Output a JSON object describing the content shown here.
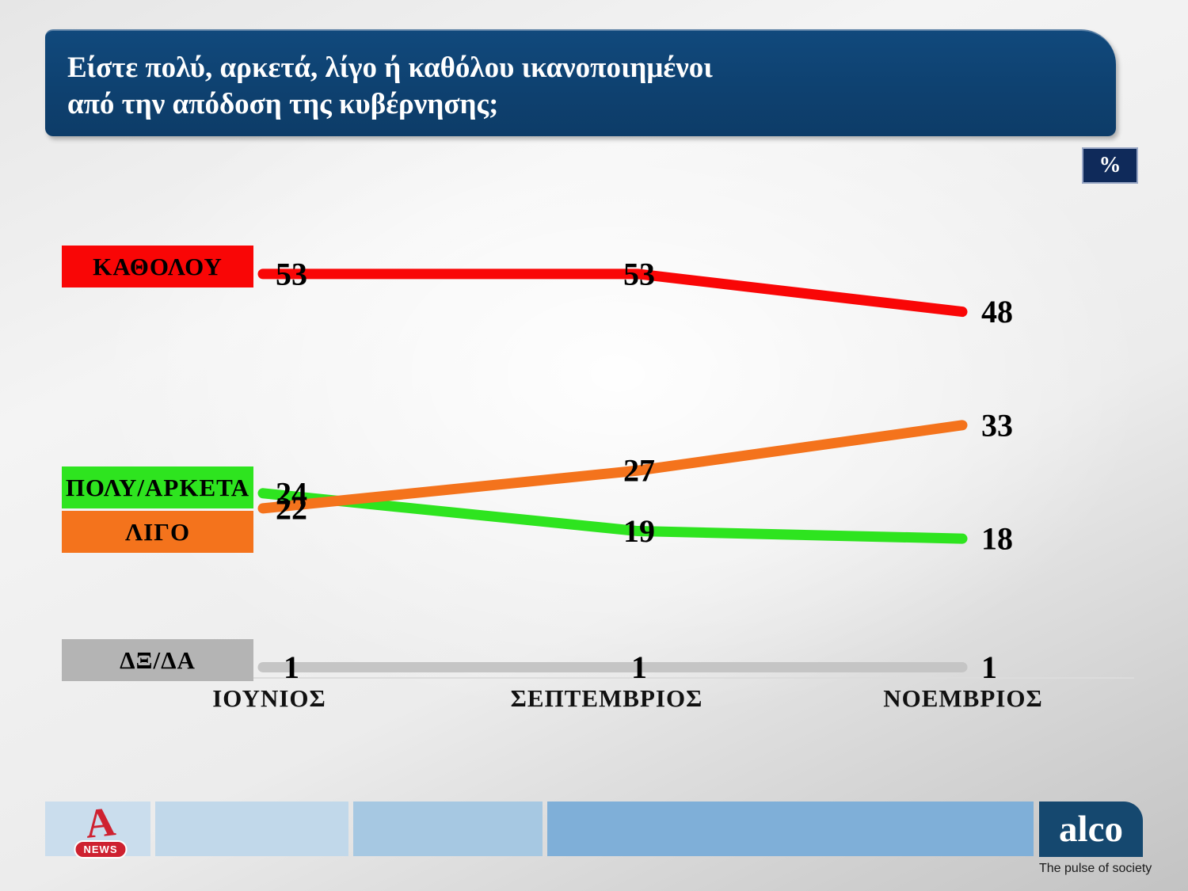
{
  "title": {
    "line1": "Είστε πολύ, αρκετά, λίγο ή καθόλου ικανοποιημένοι",
    "line2": "από την απόδοση της κυβέρνησης;"
  },
  "unit_badge": "%",
  "chart_data": {
    "type": "line",
    "categories": [
      "ΙΟΥΝΙΟΣ",
      "ΣΕΠΤΕΜΒΡΙΟΣ",
      "ΝΟΕΜΒΡΙΟΣ"
    ],
    "series": [
      {
        "name": "ΚΑΘΟΛΟΥ",
        "values": [
          53,
          53,
          48
        ],
        "color": "#f90606"
      },
      {
        "name": "ΠΟΛΥ/ΑΡΚΕΤΑ",
        "values": [
          24,
          19,
          18
        ],
        "color": "#2ee41f"
      },
      {
        "name": "ΛΙΓΟ",
        "values": [
          22,
          27,
          33
        ],
        "color": "#f4731c"
      },
      {
        "name": "ΔΞ/ΔΑ",
        "values": [
          1,
          1,
          1
        ],
        "color": "#c5c5c5"
      }
    ],
    "ylim": [
      0,
      60
    ],
    "grid": false,
    "legend_position": "left",
    "data_labels": true,
    "axis_line_color": "#dcdcdc"
  },
  "footer": {
    "news_label": "NEWS",
    "alpha_letter": "A",
    "alco_label": "alco",
    "tagline": "The pulse of society"
  }
}
